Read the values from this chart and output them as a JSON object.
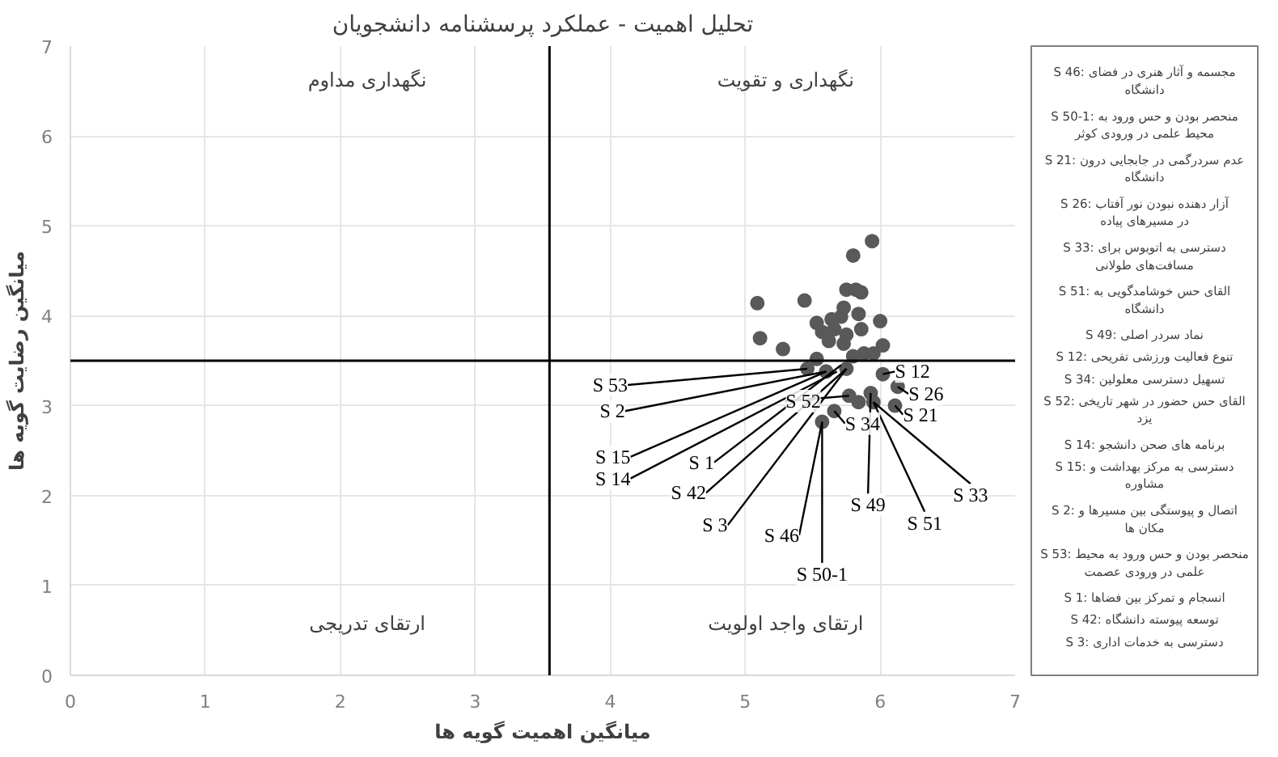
{
  "chart_data": {
    "type": "scatter",
    "title": "تحلیل اهمیت - عملکرد پرسشنامه دانشجویان",
    "xlabel": "میانگین اهمیت گویه ها",
    "ylabel": "میانگین رضایت گویه ها",
    "xlim": [
      0,
      7
    ],
    "ylim": [
      0,
      7
    ],
    "xticks": [
      0,
      1,
      2,
      3,
      4,
      5,
      6,
      7
    ],
    "yticks": [
      0,
      1,
      2,
      3,
      4,
      5,
      6,
      7
    ],
    "grid": true,
    "marker": "circle",
    "series": [
      {
        "color": "#595959",
        "x": [
          5.94,
          5.8,
          5.75,
          5.82,
          5.86,
          5.09,
          5.44,
          5.73,
          6.0,
          5.53,
          5.64,
          5.71,
          5.84,
          5.57,
          5.66,
          5.75,
          5.86,
          5.11,
          5.28,
          5.62,
          5.73,
          6.02,
          5.88,
          5.95,
          5.53,
          5.62,
          5.71,
          5.8,
          5.46,
          5.6,
          5.68,
          5.75,
          6.02,
          6.13,
          6.11,
          5.77,
          5.84,
          5.66,
          5.95,
          5.93,
          5.57
        ],
        "values": [
          4.83,
          4.67,
          4.29,
          4.29,
          4.26,
          4.14,
          4.17,
          4.09,
          3.94,
          3.92,
          3.96,
          3.99,
          4.02,
          3.82,
          3.85,
          3.79,
          3.85,
          3.75,
          3.63,
          3.72,
          3.69,
          3.67,
          3.58,
          3.58,
          3.52,
          null,
          null,
          3.55,
          3.41,
          3.38,
          null,
          3.41,
          3.35,
          3.21,
          3.0,
          3.11,
          3.04,
          2.94,
          3.04,
          3.14,
          2.82
        ]
      }
    ],
    "ref_lines": [
      {
        "axis": "x",
        "value": 3.55,
        "color": "#000000"
      },
      {
        "axis": "y",
        "value": 3.5,
        "color": "#000000"
      }
    ],
    "annotations": [
      "نگهداری مداوم",
      "نگهداری و تقویت",
      "ارتقای تدریجی",
      "ارتقای واجد اولویت",
      {
        "text": "S 53",
        "x": 5.46,
        "y": 3.41
      },
      {
        "text": "S 2",
        "x": 5.6,
        "y": 3.38
      },
      {
        "text": "S 15",
        "x": 5.6,
        "y": 3.38
      },
      {
        "text": "S 14",
        "x": 5.68,
        "y": 3.38
      },
      {
        "text": "S 1",
        "x": 5.71,
        "y": 3.45
      },
      {
        "text": "S 42",
        "x": 5.75,
        "y": 3.41
      },
      {
        "text": "S 3",
        "x": 5.75,
        "y": 3.41
      },
      {
        "text": "S 46",
        "x": 5.57,
        "y": 2.82
      },
      {
        "text": "S 50-1",
        "x": 5.57,
        "y": 2.82
      },
      {
        "text": "S 49",
        "x": 5.93,
        "y": 3.14
      },
      {
        "text": "S 51",
        "x": 5.95,
        "y": 3.04
      },
      {
        "text": "S 33",
        "x": 5.95,
        "y": 3.04
      },
      {
        "text": "S 12",
        "x": 6.02,
        "y": 3.35
      },
      {
        "text": "S 26",
        "x": 6.13,
        "y": 3.21
      },
      {
        "text": "S 21",
        "x": 6.11,
        "y": 3.0
      },
      {
        "text": "S 52",
        "x": 5.77,
        "y": 3.11
      },
      {
        "text": "S 34",
        "x": 5.66,
        "y": 2.94
      },
      "S 46: مجسمه و آثار هنری در فضای دانشگاه",
      "S 50-1: منحصر بودن و حس ورود به محیط علمی در ورودی کوثر",
      "S 21: عدم سردرگمی در جابجایی درون دانشگاه",
      "S 26: آزار دهنده نبودن نور آفتاب در مسیرهای پیاده",
      "S 33: دسترسی به اتوبوس برای مسافت‌های طولانی",
      "S 51: القای حس خوشامدگویی به دانشگاه",
      "S 49: نماد سردر اصلی",
      "S 12: تنوع فعالیت ورزشی تفریحی",
      "S 34: تسهیل دسترسی معلولین",
      "S 52: القای حس حضور در شهر تاریخی یزد",
      "S 14: برنامه های صحن دانشجو",
      "S 15: دسترسی به مرکز بهداشت و مشاوره",
      "S 2: اتصال و پیوستگی بین مسیرها و مکان ها",
      "S 53: منحصر بودن و حس ورود به محیط علمی در ورودی عصمت",
      "S 1: انسجام و تمرکز بین فضاها",
      "S 42: توسعه پیوسته دانشگاه",
      "S 3: دسترسی به خدمات اداری"
    ]
  }
}
